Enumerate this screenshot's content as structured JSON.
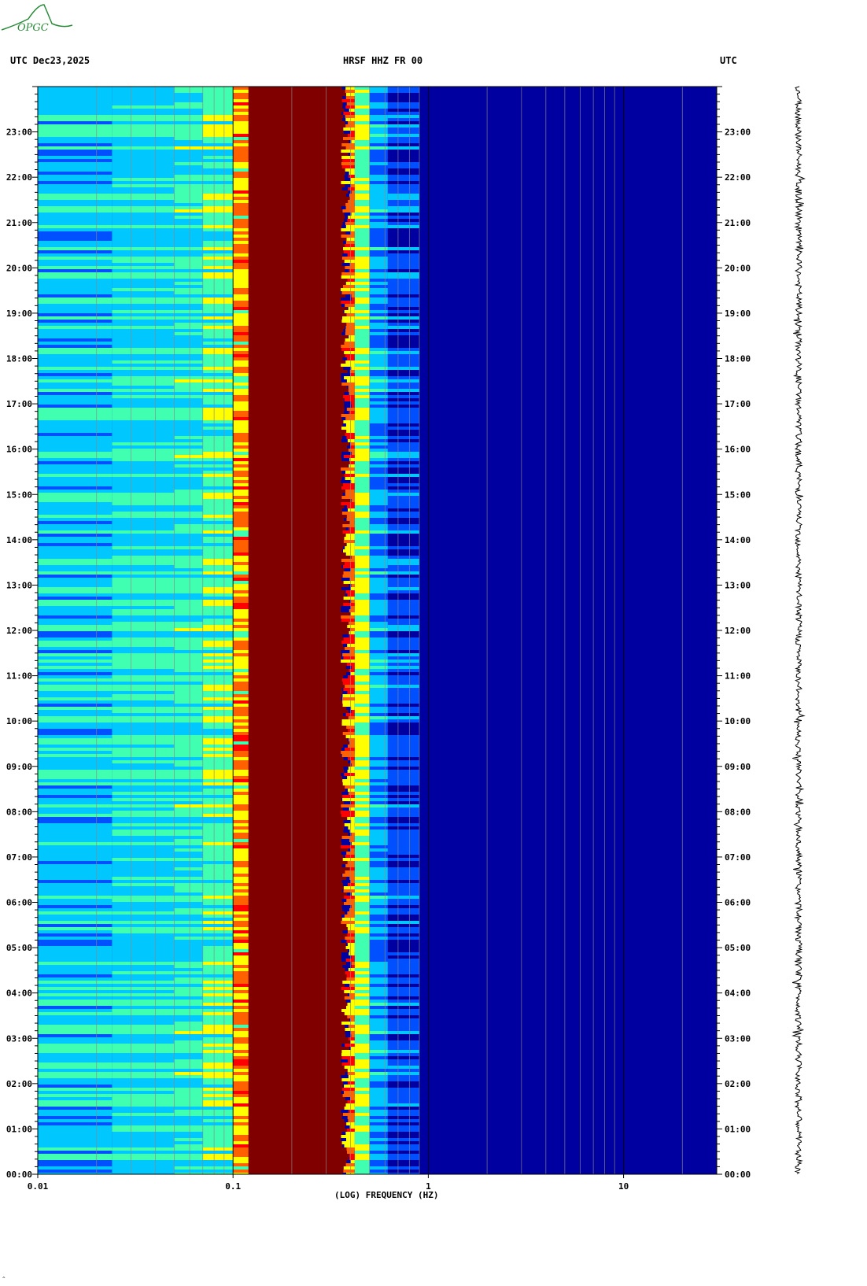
{
  "header": {
    "left": "UTC  Dec23,2025",
    "center": "HRSF HHZ FR 00",
    "right": "UTC"
  },
  "logo": {
    "text": "OPGC",
    "color": "#2a8a3a"
  },
  "chart_data": {
    "type": "heatmap",
    "title": "HRSF HHZ FR 00",
    "xlabel": "(LOG) FREQUENCY (HZ)",
    "ylabel": "",
    "x_scale": "log",
    "x_range": [
      0.01,
      30
    ],
    "x_major_ticks": [
      0.01,
      0.1,
      1,
      10
    ],
    "x_tick_labels": [
      "0.01",
      "0.1",
      "1",
      "10"
    ],
    "y_range_hours": [
      0,
      24
    ],
    "y_tick_labels": [
      "00:00",
      "01:00",
      "02:00",
      "03:00",
      "04:00",
      "05:00",
      "06:00",
      "07:00",
      "08:00",
      "09:00",
      "10:00",
      "11:00",
      "12:00",
      "13:00",
      "14:00",
      "15:00",
      "16:00",
      "17:00",
      "18:00",
      "19:00",
      "20:00",
      "21:00",
      "22:00",
      "23:00"
    ],
    "colormap": [
      "#0000a0",
      "#0050ff",
      "#00c8ff",
      "#40ffb0",
      "#ffff00",
      "#ff6000",
      "#ff0000",
      "#800000"
    ],
    "spectral_bands": [
      {
        "f0": 0.01,
        "f1": 0.024,
        "level": 0.3
      },
      {
        "f0": 0.024,
        "f1": 0.05,
        "level": 0.34
      },
      {
        "f0": 0.05,
        "f1": 0.07,
        "level": 0.38
      },
      {
        "f0": 0.07,
        "f1": 0.1,
        "level": 0.44
      },
      {
        "f0": 0.1,
        "f1": 0.12,
        "level": 0.66
      },
      {
        "f0": 0.12,
        "f1": 0.37,
        "level": 1.0
      },
      {
        "f0": 0.37,
        "f1": 0.42,
        "level": 0.7
      },
      {
        "f0": 0.42,
        "f1": 0.5,
        "level": 0.5
      },
      {
        "f0": 0.5,
        "f1": 0.62,
        "level": 0.25
      },
      {
        "f0": 0.62,
        "f1": 0.9,
        "level": 0.12
      },
      {
        "f0": 0.9,
        "f1": 30,
        "level": 0.05
      }
    ],
    "grid": true
  },
  "colors": {
    "background": "#ffffff",
    "frame": "#000000",
    "gridline": "#888888"
  }
}
